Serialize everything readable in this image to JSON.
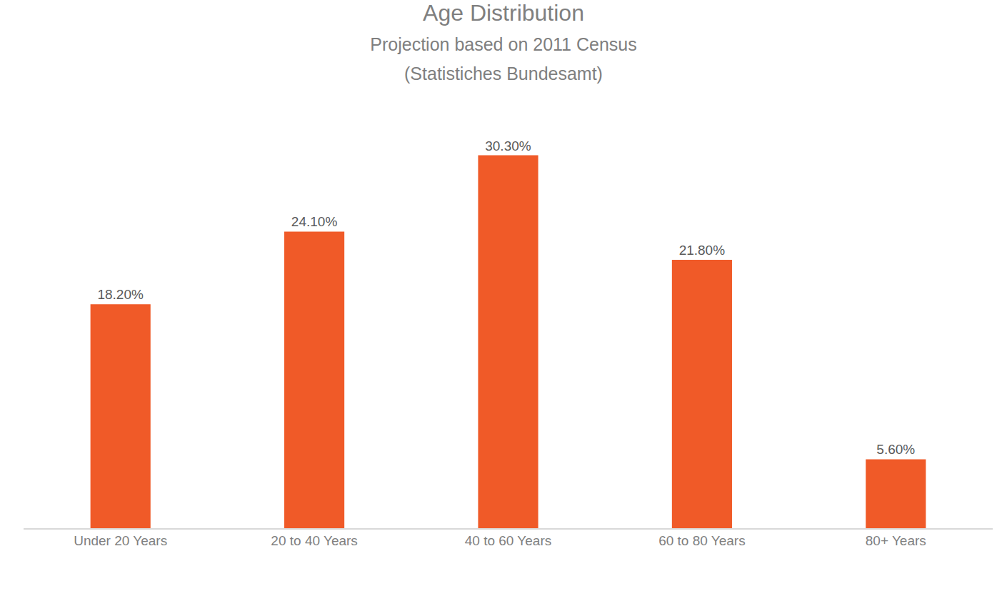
{
  "chart_data": {
    "type": "bar",
    "title": "Age Distribution",
    "subtitle": [
      "Projection based on 2011 Census",
      "(Statistiches Bundesamt)"
    ],
    "categories": [
      "Under 20 Years",
      "20 to 40 Years",
      "40 to 60 Years",
      "60 to 80 Years",
      "80+ Years"
    ],
    "values": [
      18.2,
      24.1,
      30.3,
      21.8,
      5.6
    ],
    "value_labels": [
      "18.20%",
      "24.10%",
      "30.30%",
      "21.80%",
      "5.60%"
    ],
    "color": "#f05a28",
    "data_labels": true,
    "grid": false,
    "tick_labels": "x"
  }
}
